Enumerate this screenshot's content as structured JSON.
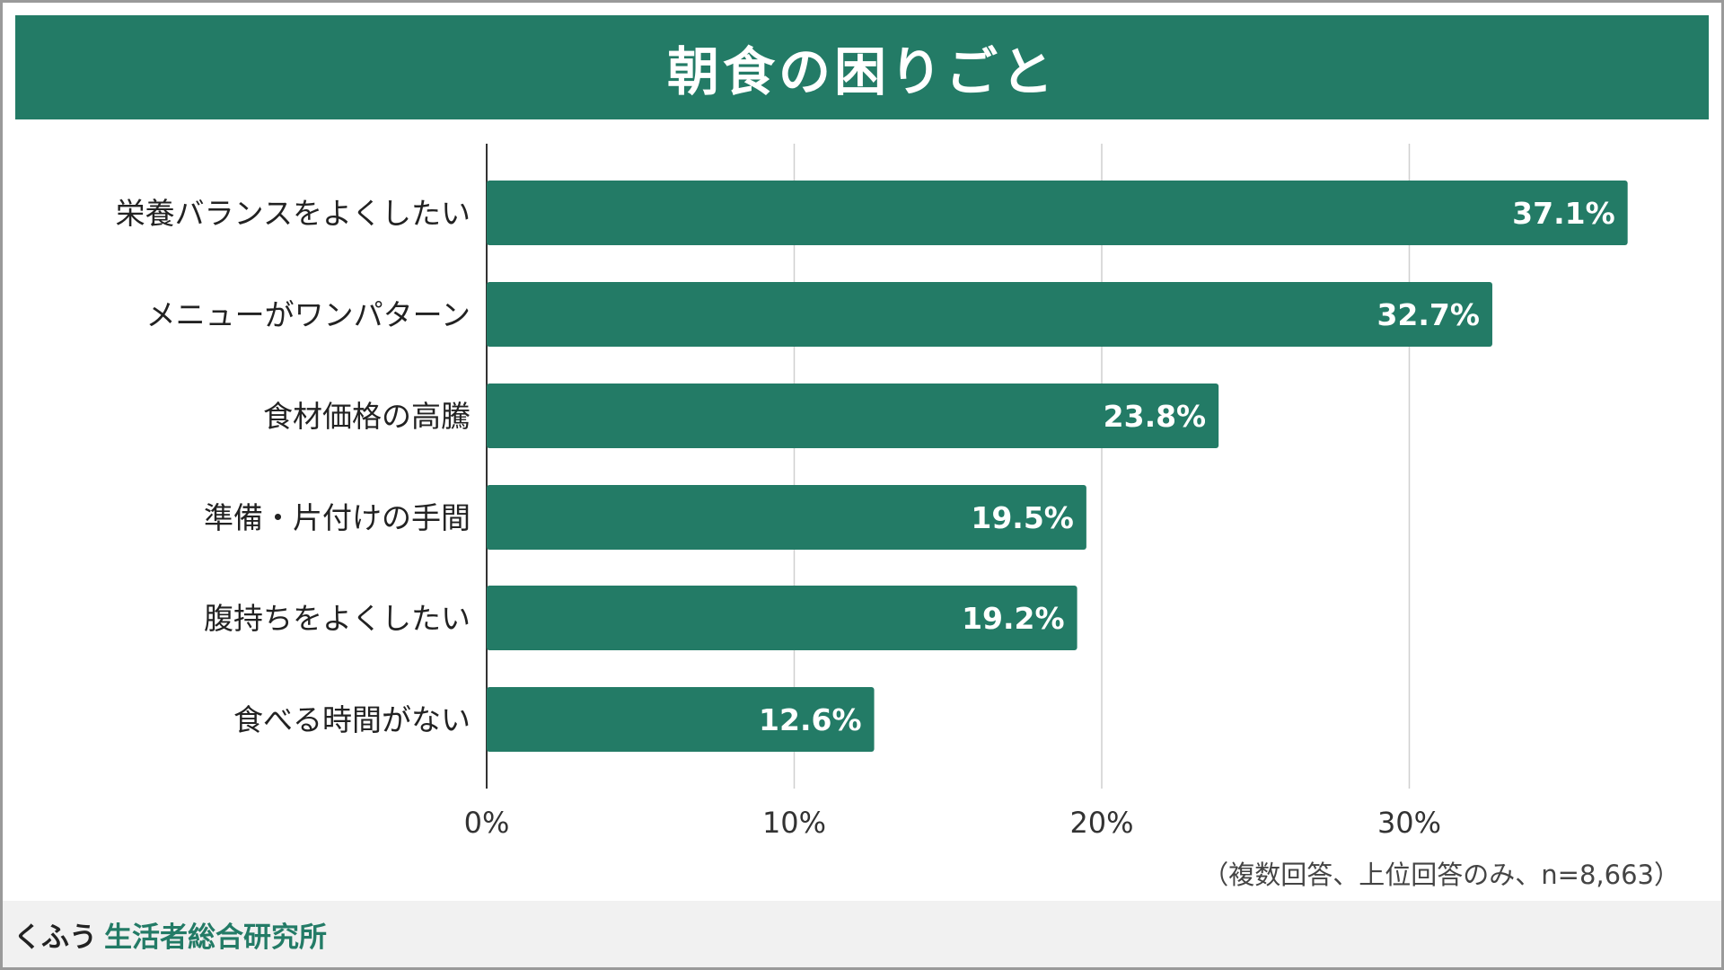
{
  "colors": {
    "bar": "#237b66",
    "title_bg": "#237b66",
    "grid": "#cfcfcf",
    "axis": "#333333"
  },
  "chart_data": {
    "type": "bar",
    "orientation": "horizontal",
    "title": "朝食の困りごと",
    "categories": [
      "栄養バランスをよくしたい",
      "メニューがワンパターン",
      "食材価格の高騰",
      "準備・片付けの手間",
      "腹持ちをよくしたい",
      "食べる時間がない"
    ],
    "values": [
      37.1,
      32.7,
      23.8,
      19.5,
      19.2,
      12.6
    ],
    "value_labels": [
      "37.1%",
      "32.7%",
      "23.8%",
      "19.5%",
      "19.2%",
      "12.6%"
    ],
    "x_ticks": [
      0,
      10,
      20,
      30
    ],
    "x_tick_labels": [
      "0%",
      "10%",
      "20%",
      "30%"
    ],
    "xlim": [
      0,
      40
    ],
    "grid": true,
    "legend": "none",
    "note": "（複数回答、上位回答のみ、n=8,663）"
  },
  "footer": {
    "brand_part1": "くふう",
    "brand_part2": "生活者総合研究所"
  }
}
